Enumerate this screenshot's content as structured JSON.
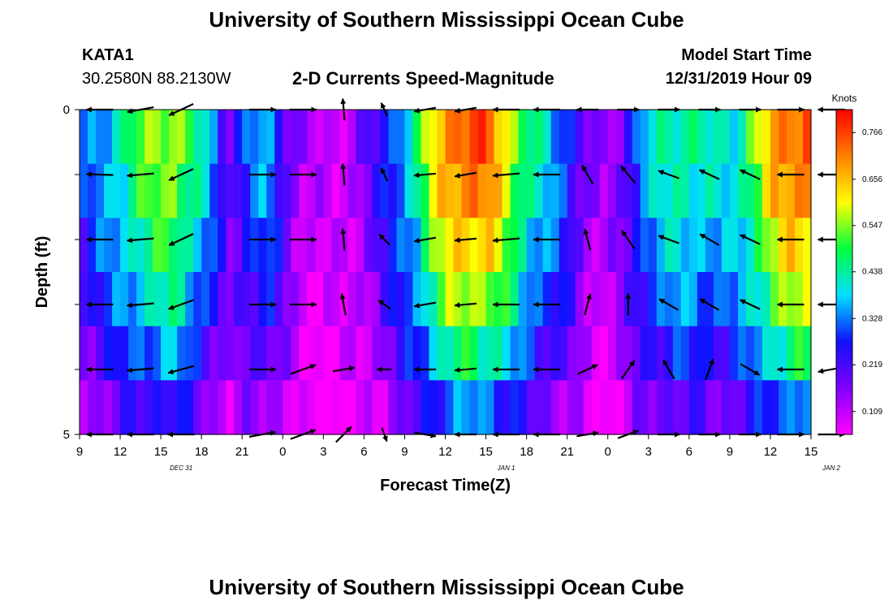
{
  "header": {
    "title": "University of Southern Mississippi Ocean Cube",
    "station": "KATA1",
    "coords": "30.2580N 88.2130W",
    "subtitle": "2-D Currents Speed-Magnitude",
    "model_start_label": "Model Start Time",
    "model_start_value": "12/31/2019 Hour 09"
  },
  "footer": {
    "title": "University of Southern Mississippi Ocean Cube"
  },
  "chart_data": {
    "type": "heatmap",
    "title": "2-D Currents Speed-Magnitude",
    "xlabel": "Forecast Time(Z)",
    "ylabel": "Depth (ft)",
    "x_tick_labels": [
      "9",
      "12",
      "15",
      "18",
      "21",
      "0",
      "3",
      "6",
      "9",
      "12",
      "15",
      "18",
      "21",
      "0",
      "3",
      "6",
      "9",
      "12",
      "15"
    ],
    "date_labels": [
      {
        "text": "DEC 31",
        "x_index": 2.5
      },
      {
        "text": "JAN 1",
        "x_index": 10.5
      },
      {
        "text": "JAN 2",
        "x_index": 18.5
      }
    ],
    "y_tick_labels": [
      "0",
      "5"
    ],
    "ylim": [
      0,
      5
    ],
    "colorbar": {
      "label": "Knots",
      "ticks": [
        "0.766",
        "0.656",
        "0.547",
        "0.438",
        "0.328",
        "0.219",
        "0.109"
      ],
      "tick_values": [
        0.766,
        0.656,
        0.547,
        0.438,
        0.328,
        0.219,
        0.109
      ],
      "range": [
        0.055,
        0.82
      ],
      "colors": [
        "#ff00ff",
        "#8000ff",
        "#1010ff",
        "#00e0ff",
        "#00ff40",
        "#ffff00",
        "#ff8000",
        "#ff0000"
      ]
    },
    "speed_profile_knots": [
      0.28,
      0.34,
      0.42,
      0.5,
      0.55,
      0.58,
      0.48,
      0.35,
      0.2,
      0.32,
      0.36,
      0.22,
      0.12,
      0.1,
      0.11,
      0.16,
      0.24,
      0.34,
      0.46,
      0.64,
      0.74,
      0.76,
      0.72,
      0.58,
      0.46,
      0.38,
      0.3,
      0.18,
      0.12,
      0.2,
      0.36,
      0.42,
      0.46,
      0.44,
      0.4,
      0.42,
      0.54,
      0.68,
      0.74,
      0.76
    ],
    "depth_factor": [
      1.0,
      0.95,
      0.86,
      0.76,
      0.62,
      0.45
    ],
    "arrows": {
      "x_hours": [
        1.5,
        4.5,
        7.5,
        13.5,
        16.5,
        19.5,
        22.5,
        25.5,
        28.5,
        31.5,
        34.5,
        37.5,
        40.5,
        43.5,
        46.5,
        49.5,
        52.5,
        55.5
      ],
      "depth_levels_ft": [
        0,
        1,
        2,
        3,
        4,
        5
      ],
      "directions_deg": [
        [
          180,
          190,
          205,
          0,
          0,
          95,
          115,
          190,
          190,
          180,
          180,
          180,
          0,
          0,
          0,
          0,
          0,
          180
        ],
        [
          178,
          185,
          205,
          0,
          0,
          95,
          115,
          185,
          190,
          185,
          180,
          120,
          130,
          160,
          155,
          155,
          180,
          180
        ],
        [
          180,
          185,
          205,
          0,
          0,
          95,
          135,
          190,
          185,
          185,
          180,
          105,
          125,
          160,
          150,
          155,
          180,
          180
        ],
        [
          180,
          185,
          200,
          0,
          0,
          100,
          145,
          190,
          185,
          180,
          180,
          75,
          90,
          150,
          150,
          155,
          180,
          180
        ],
        [
          180,
          185,
          195,
          0,
          20,
          10,
          180,
          180,
          185,
          180,
          180,
          25,
          55,
          120,
          70,
          330,
          180,
          190
        ],
        [
          180,
          180,
          180,
          10,
          20,
          45,
          290,
          350,
          180,
          180,
          180,
          10,
          20,
          0,
          0,
          0,
          0,
          0
        ]
      ],
      "length_knots": [
        0.55,
        0.55,
        0.55,
        0.55,
        0.55,
        0.45,
        0.3,
        0.45,
        0.45,
        0.55,
        0.55,
        0.45,
        0.45,
        0.45,
        0.45,
        0.45,
        0.55,
        0.55
      ]
    }
  }
}
